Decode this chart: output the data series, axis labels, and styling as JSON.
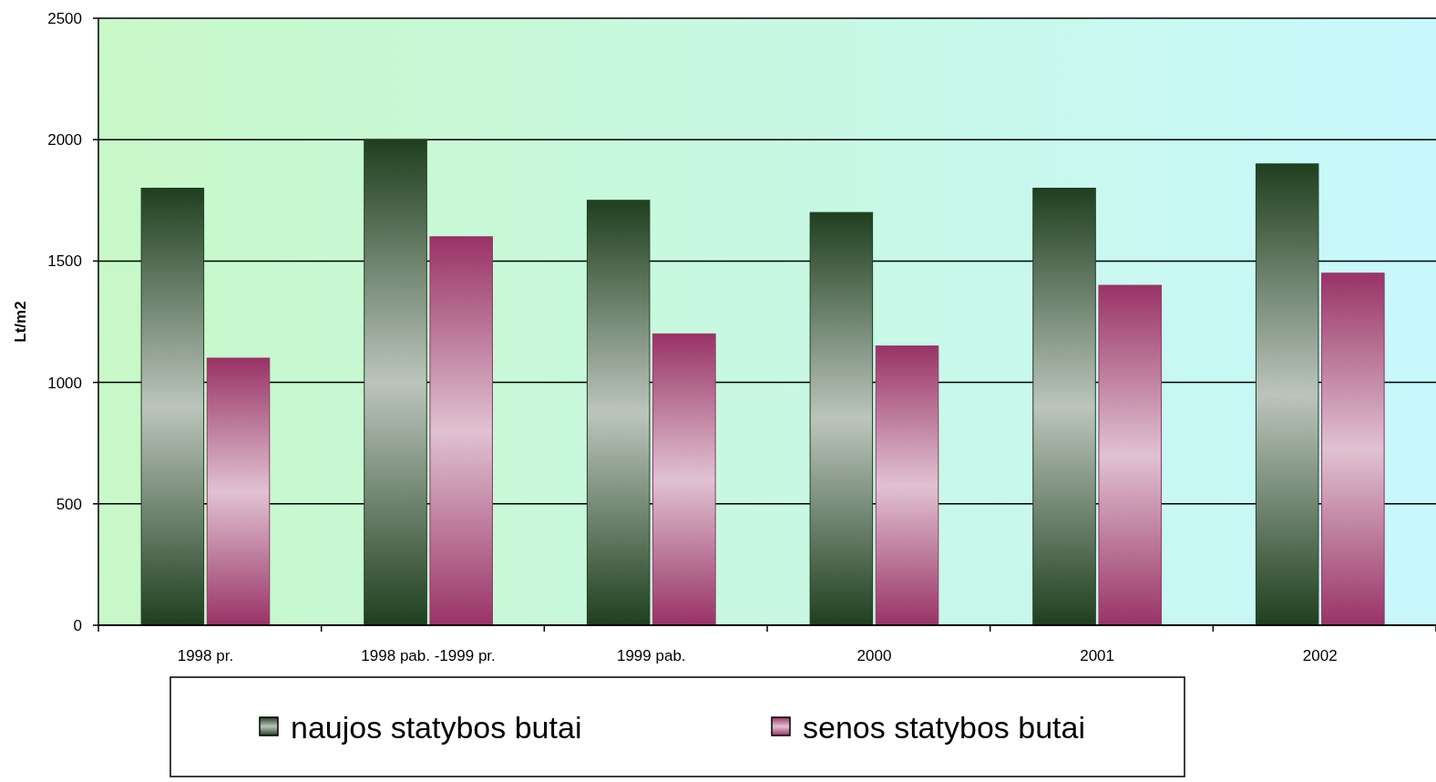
{
  "chart_data": {
    "type": "bar",
    "ylabel": "Lt/m2",
    "categories": [
      "1998 pr.",
      "1998 pab. -1999 pr.",
      "1999 pab.",
      "2000",
      "2001",
      "2002"
    ],
    "series": [
      {
        "name": "naujos statybos butai",
        "color": "#1f3f1f",
        "values": [
          1800,
          2000,
          1750,
          1700,
          1800,
          1900
        ]
      },
      {
        "name": "senos statybos butai",
        "color": "#993366",
        "values": [
          1100,
          1600,
          1200,
          1150,
          1400,
          1450
        ]
      }
    ],
    "ylim": [
      0,
      2500
    ],
    "yticks": [
      0,
      500,
      1000,
      1500,
      2000,
      2500
    ],
    "grid": "y",
    "legend": "bottom"
  }
}
